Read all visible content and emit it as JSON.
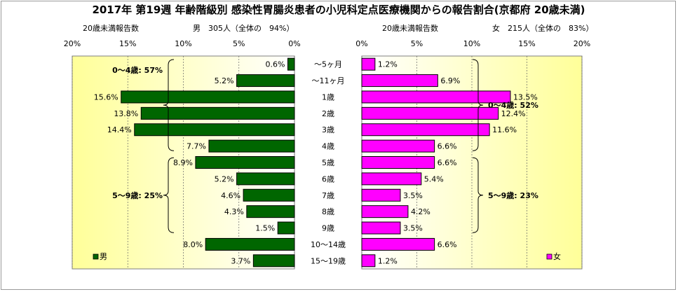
{
  "colors": {
    "male": "#006600",
    "female": "#ff00ff",
    "plot_gradient_start": "#ffffff",
    "plot_gradient_end": "#ffff99",
    "grid": "#666666",
    "text": "#000000"
  },
  "chart_data": {
    "type": "bar",
    "title": "2017年 第19週 年齢階級別 感染性胃腸炎患者の小児科定点医療機関からの報告割合(京都府 20歳未満)",
    "categories": [
      "～5ヶ月",
      "～11ヶ月",
      "1歳",
      "2歳",
      "3歳",
      "4歳",
      "5歳",
      "6歳",
      "7歳",
      "8歳",
      "9歳",
      "10～14歳",
      "15～19歳"
    ],
    "xlim": [
      0,
      20
    ],
    "tick_labels": [
      "0%",
      "5%",
      "10%",
      "15%",
      "20%"
    ],
    "grid": true,
    "legend_placement": "bottom",
    "panels": [
      {
        "side": "left",
        "direction": "reversed",
        "header_left": "20歳未満報告数",
        "header_right": "男　305人（全体の　94%）",
        "series": [
          {
            "name": "男",
            "values": [
              0.6,
              5.2,
              15.6,
              13.8,
              14.4,
              7.7,
              8.9,
              5.2,
              4.6,
              4.3,
              1.5,
              8.0,
              3.7
            ]
          }
        ],
        "value_labels": [
          "0.6%",
          "5.2%",
          "15.6%",
          "13.8%",
          "14.4%",
          "7.7%",
          "8.9%",
          "5.2%",
          "4.6%",
          "4.3%",
          "1.5%",
          "8.0%",
          "3.7%"
        ],
        "groups": [
          {
            "label": "0～4歳: 57%",
            "from": 0,
            "to": 5
          },
          {
            "label": "5～9歳: 25%",
            "from": 6,
            "to": 10
          }
        ],
        "legend": "男"
      },
      {
        "side": "right",
        "direction": "normal",
        "header_left": "20歳未満報告数",
        "header_right": "女　215人（全体の　83%）",
        "series": [
          {
            "name": "女",
            "values": [
              1.2,
              6.9,
              13.5,
              12.4,
              11.6,
              6.6,
              6.6,
              5.4,
              3.5,
              4.2,
              3.5,
              6.6,
              1.2
            ]
          }
        ],
        "value_labels": [
          "1.2%",
          "6.9%",
          "13.5%",
          "12.4%",
          "11.6%",
          "6.6%",
          "6.6%",
          "5.4%",
          "3.5%",
          "4.2%",
          "3.5%",
          "6.6%",
          "1.2%"
        ],
        "groups": [
          {
            "label": "0～4歳: 52%",
            "from": 0,
            "to": 5
          },
          {
            "label": "5～9歳: 23%",
            "from": 6,
            "to": 10
          }
        ],
        "legend": "女"
      }
    ]
  }
}
